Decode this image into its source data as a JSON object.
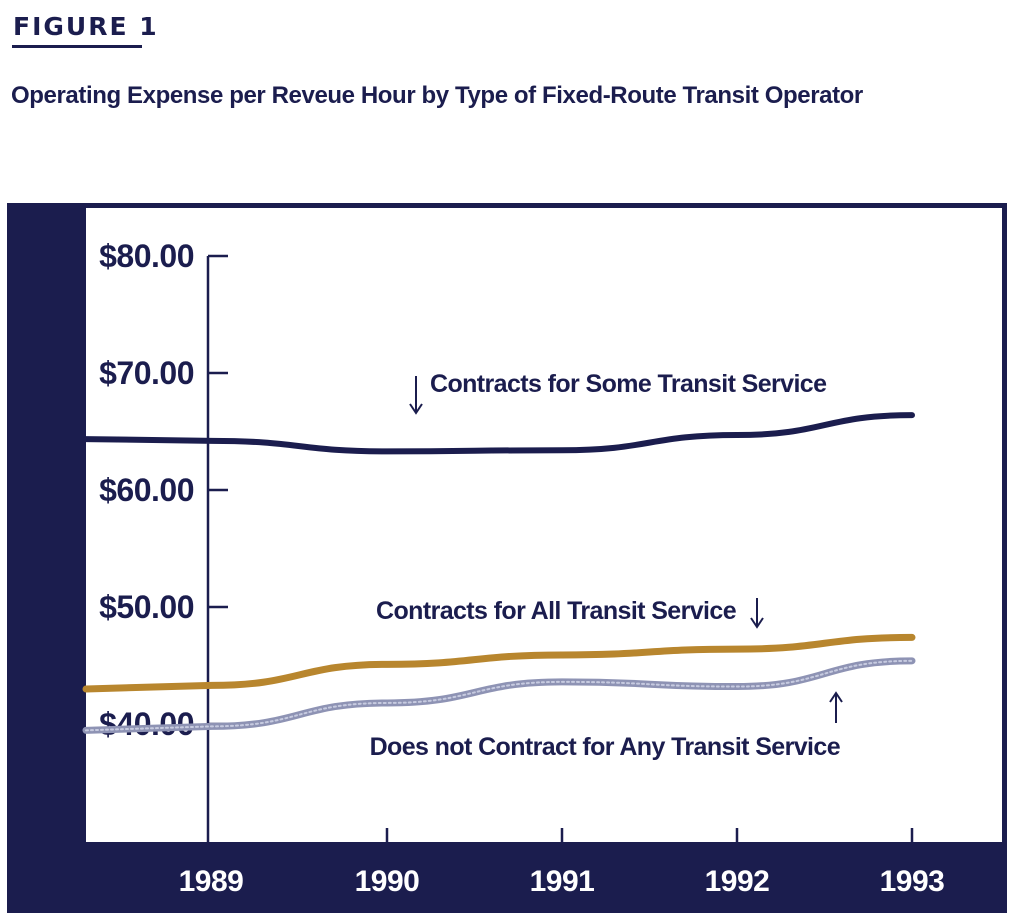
{
  "figure": {
    "label": "FIGURE 1",
    "title": "Operating Expense per Reveue Hour by Type of Fixed-Route Transit Operator"
  },
  "colors": {
    "frame": "#1b1d4e",
    "plot_background": "#ffffff",
    "axis": "#1b1d4e",
    "series_some": "#1b1d4e",
    "series_all": "#b8862e",
    "series_none": "#8e93b4"
  },
  "chart_data": {
    "type": "line",
    "title": "Operating Expense per Reveue Hour by Type of Fixed-Route Transit Operator",
    "xlabel": "",
    "ylabel": "",
    "x": [
      "1989",
      "1990",
      "1991",
      "1992",
      "1993"
    ],
    "y_ticks": [
      "$40.00",
      "$50.00",
      "$60.00",
      "$70.00",
      "$80.00"
    ],
    "y_tick_values": [
      40,
      50,
      60,
      70,
      80
    ],
    "ylim": [
      30,
      80
    ],
    "grid": false,
    "legend": "inline labels next to lines",
    "series": [
      {
        "key": "some",
        "name": "Contracts for Some Transit Service",
        "values": [
          64.2,
          63.3,
          63.4,
          64.7,
          66.4
        ],
        "arrow": "down"
      },
      {
        "key": "all",
        "name": "Contracts for All Transit Service",
        "values": [
          43.3,
          45.1,
          45.9,
          46.4,
          47.4
        ],
        "arrow": "down"
      },
      {
        "key": "none",
        "name": "Does not Contract for Any Transit Service",
        "values": [
          39.8,
          41.8,
          43.6,
          43.2,
          45.4
        ],
        "arrow": "up"
      }
    ]
  }
}
